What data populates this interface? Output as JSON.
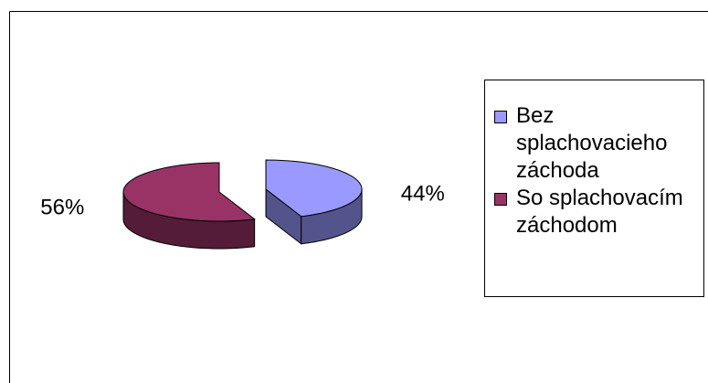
{
  "chart_data": {
    "type": "pie3d",
    "series": [
      {
        "name": "Bez splachovacieho záchoda",
        "color": "#9999ff",
        "values": [
          44
        ],
        "value_labels": [
          "44%"
        ]
      },
      {
        "name": "So splachovacím záchodom",
        "color": "#993366",
        "values": [
          56
        ],
        "value_labels": [
          "56%"
        ]
      }
    ]
  }
}
